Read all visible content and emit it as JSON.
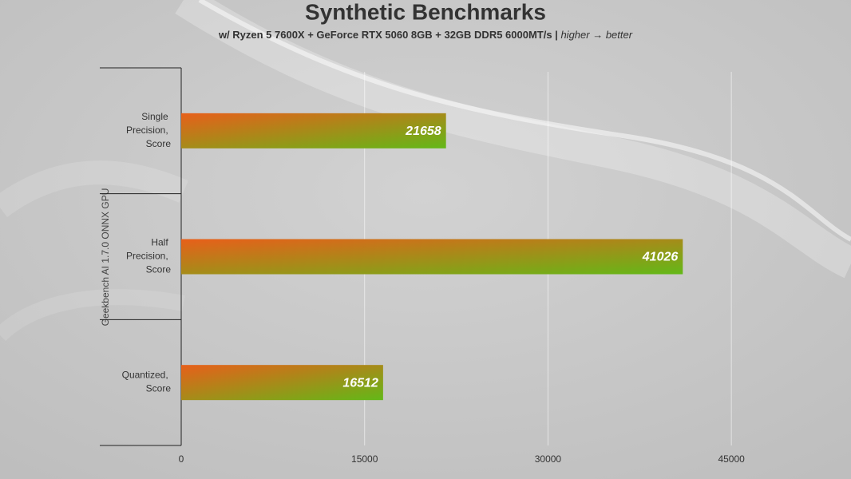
{
  "chart_data": {
    "type": "bar",
    "orientation": "horizontal",
    "title": "Synthetic Benchmarks",
    "subtitle": "w/ Ryzen 5 7600X + GeForce RTX 5060 8GB + 32GB DDR5 6000MT/s |",
    "subtitle_note": "higher → better",
    "group_label": "Geekbench AI 1.7.0 ONNX GPU",
    "categories": [
      "Single Precision, Score",
      "Half Precision, Score",
      "Quantized, Score"
    ],
    "values": [
      21658,
      41026,
      16512
    ],
    "gradient": [
      "#e85f1a",
      "#63b818"
    ],
    "xlim": [
      0,
      52500
    ],
    "xticks": [
      0,
      15000,
      30000,
      45000
    ],
    "grid": true
  }
}
